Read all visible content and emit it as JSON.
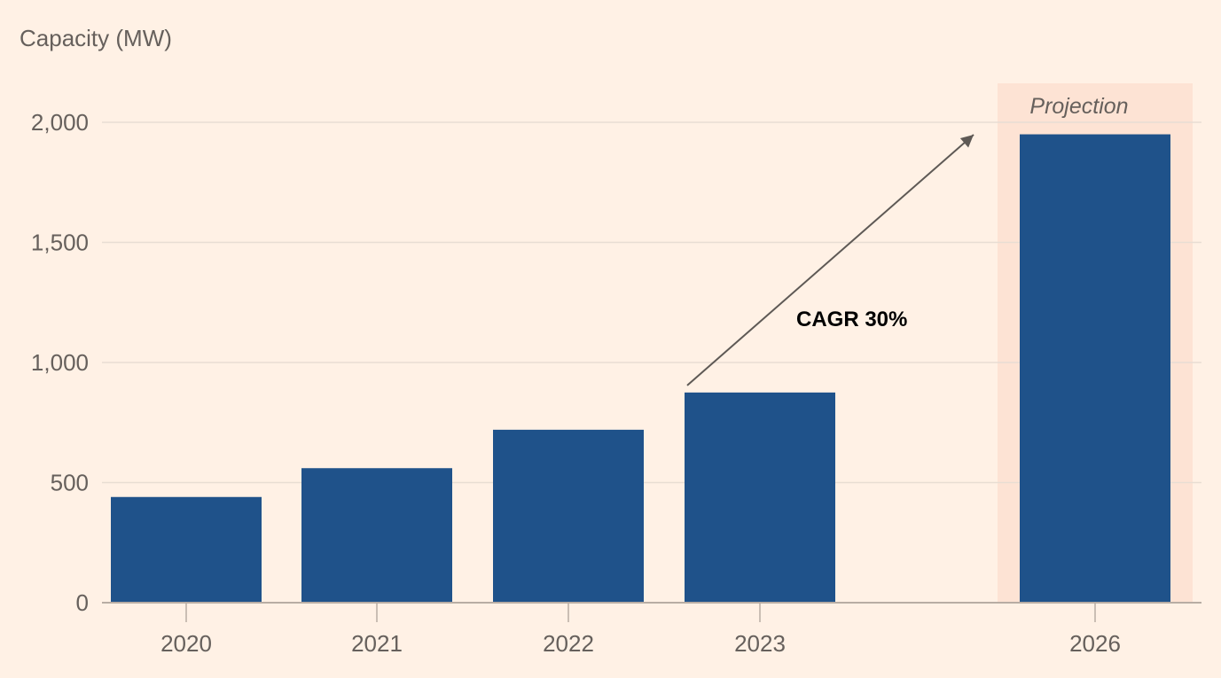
{
  "chart_data": {
    "type": "bar",
    "ylabel": "Capacity (MW)",
    "xlabel": "",
    "categories": [
      "2020",
      "2021",
      "2022",
      "2023",
      "2026"
    ],
    "values": [
      440,
      560,
      720,
      875,
      1950
    ],
    "ylim": [
      0,
      2000
    ],
    "yticks": [
      0,
      500,
      1000,
      1500,
      2000
    ],
    "ytick_labels": [
      "0",
      "500",
      "1,000",
      "1,500",
      "2,000"
    ],
    "grid": true,
    "projection_label": "Projection",
    "projection_category": "2026",
    "annotation": {
      "text": "CAGR 30%",
      "arrow_from_category": "2023",
      "arrow_to_category": "2026"
    },
    "colors": {
      "background": "#FFF1E5",
      "bar": "#1F528A",
      "projection_band": "#FDE3D4",
      "grid": "#E8DDD3",
      "axis": "#B8ADA4",
      "arrow": "#5E5955"
    }
  }
}
